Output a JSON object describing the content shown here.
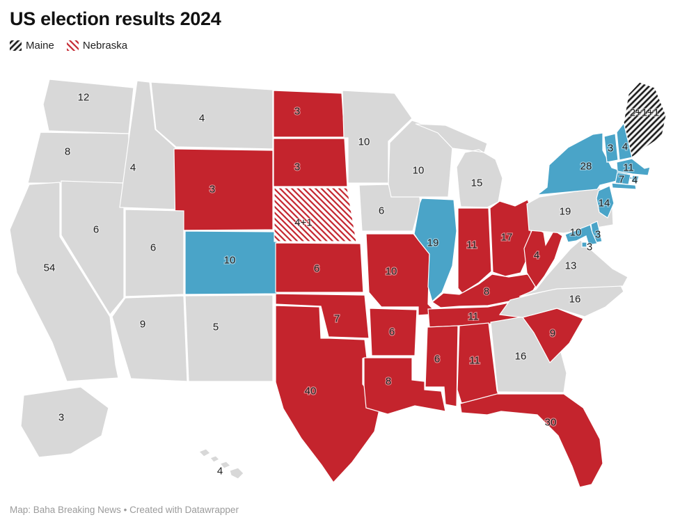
{
  "title": "US election results 2024",
  "legend": [
    {
      "label": "Maine",
      "swatch": "maine-hatch"
    },
    {
      "label": "Nebraska",
      "swatch": "nebraska-hatch"
    }
  ],
  "footer": {
    "text": "Map: Baha Breaking News",
    "separator": "•",
    "link": "Created with Datawrapper"
  },
  "colors": {
    "red": "#c4242d",
    "blue": "#4aa4c8",
    "gray": "#d8d8d8",
    "maine_hatch_base": "#f4f4f4",
    "maine_hatch_stroke": "#1a1a1a",
    "nebraska_hatch_base": "#ffffff",
    "nebraska_hatch_stroke": "#c4242d"
  },
  "states": [
    {
      "abbr": "WA",
      "name": "Washington",
      "votes": "12",
      "fill": "gray"
    },
    {
      "abbr": "OR",
      "name": "Oregon",
      "votes": "8",
      "fill": "gray"
    },
    {
      "abbr": "CA",
      "name": "California",
      "votes": "54",
      "fill": "gray"
    },
    {
      "abbr": "NV",
      "name": "Nevada",
      "votes": "6",
      "fill": "gray"
    },
    {
      "abbr": "ID",
      "name": "Idaho",
      "votes": "4",
      "fill": "gray"
    },
    {
      "abbr": "MT",
      "name": "Montana",
      "votes": "4",
      "fill": "gray"
    },
    {
      "abbr": "WY",
      "name": "Wyoming",
      "votes": "3",
      "fill": "red"
    },
    {
      "abbr": "UT",
      "name": "Utah",
      "votes": "6",
      "fill": "gray"
    },
    {
      "abbr": "CO",
      "name": "Colorado",
      "votes": "10",
      "fill": "blue"
    },
    {
      "abbr": "AZ",
      "name": "Arizona",
      "votes": "9",
      "fill": "gray"
    },
    {
      "abbr": "NM",
      "name": "New Mexico",
      "votes": "5",
      "fill": "gray"
    },
    {
      "abbr": "ND",
      "name": "North Dakota",
      "votes": "3",
      "fill": "red"
    },
    {
      "abbr": "SD",
      "name": "South Dakota",
      "votes": "3",
      "fill": "red"
    },
    {
      "abbr": "NE",
      "name": "Nebraska",
      "votes": "4+1",
      "fill": "nebraska-hatch"
    },
    {
      "abbr": "KS",
      "name": "Kansas",
      "votes": "6",
      "fill": "red"
    },
    {
      "abbr": "OK",
      "name": "Oklahoma",
      "votes": "7",
      "fill": "red"
    },
    {
      "abbr": "TX",
      "name": "Texas",
      "votes": "40",
      "fill": "red"
    },
    {
      "abbr": "MN",
      "name": "Minnesota",
      "votes": "10",
      "fill": "gray"
    },
    {
      "abbr": "IA",
      "name": "Iowa",
      "votes": "6",
      "fill": "gray"
    },
    {
      "abbr": "MO",
      "name": "Missouri",
      "votes": "10",
      "fill": "red"
    },
    {
      "abbr": "AR",
      "name": "Arkansas",
      "votes": "6",
      "fill": "red"
    },
    {
      "abbr": "LA",
      "name": "Louisiana",
      "votes": "8",
      "fill": "red"
    },
    {
      "abbr": "WI",
      "name": "Wisconsin",
      "votes": "10",
      "fill": "gray"
    },
    {
      "abbr": "IL",
      "name": "Illinois",
      "votes": "19",
      "fill": "blue"
    },
    {
      "abbr": "MI",
      "name": "Michigan",
      "votes": "15",
      "fill": "gray"
    },
    {
      "abbr": "IN",
      "name": "Indiana",
      "votes": "11",
      "fill": "red"
    },
    {
      "abbr": "OH",
      "name": "Ohio",
      "votes": "17",
      "fill": "red"
    },
    {
      "abbr": "KY",
      "name": "Kentucky",
      "votes": "8",
      "fill": "red"
    },
    {
      "abbr": "TN",
      "name": "Tennessee",
      "votes": "11",
      "fill": "red"
    },
    {
      "abbr": "MS",
      "name": "Mississippi",
      "votes": "6",
      "fill": "red"
    },
    {
      "abbr": "AL",
      "name": "Alabama",
      "votes": "11",
      "fill": "red"
    },
    {
      "abbr": "GA",
      "name": "Georgia",
      "votes": "16",
      "fill": "gray"
    },
    {
      "abbr": "FL",
      "name": "Florida",
      "votes": "30",
      "fill": "red"
    },
    {
      "abbr": "SC",
      "name": "South Carolina",
      "votes": "9",
      "fill": "red"
    },
    {
      "abbr": "NC",
      "name": "North Carolina",
      "votes": "16",
      "fill": "gray"
    },
    {
      "abbr": "VA",
      "name": "Virginia",
      "votes": "13",
      "fill": "gray"
    },
    {
      "abbr": "WV",
      "name": "West Virginia",
      "votes": "4",
      "fill": "red"
    },
    {
      "abbr": "PA",
      "name": "Pennsylvania",
      "votes": "19",
      "fill": "gray"
    },
    {
      "abbr": "NY",
      "name": "New York",
      "votes": "28",
      "fill": "blue"
    },
    {
      "abbr": "NJ",
      "name": "New Jersey",
      "votes": "14",
      "fill": "blue"
    },
    {
      "abbr": "VT",
      "name": "Vermont",
      "votes": "3",
      "fill": "blue"
    },
    {
      "abbr": "NH",
      "name": "New Hampshire",
      "votes": "4",
      "fill": "blue"
    },
    {
      "abbr": "ME",
      "name": "Maine",
      "votes": "2+1+1",
      "fill": "maine-hatch"
    },
    {
      "abbr": "MA",
      "name": "Massachusetts",
      "votes": "11",
      "fill": "blue"
    },
    {
      "abbr": "RI",
      "name": "Rhode Island",
      "votes": "4",
      "fill": "blue"
    },
    {
      "abbr": "CT",
      "name": "Connecticut",
      "votes": "7",
      "fill": "blue"
    },
    {
      "abbr": "DE",
      "name": "Delaware",
      "votes": "3",
      "fill": "blue"
    },
    {
      "abbr": "MD",
      "name": "Maryland",
      "votes": "10",
      "fill": "blue"
    },
    {
      "abbr": "DC",
      "name": "District of Columbia",
      "votes": "3",
      "fill": "blue"
    },
    {
      "abbr": "AK",
      "name": "Alaska",
      "votes": "3",
      "fill": "gray"
    },
    {
      "abbr": "HI",
      "name": "Hawaii",
      "votes": "4",
      "fill": "gray"
    }
  ]
}
